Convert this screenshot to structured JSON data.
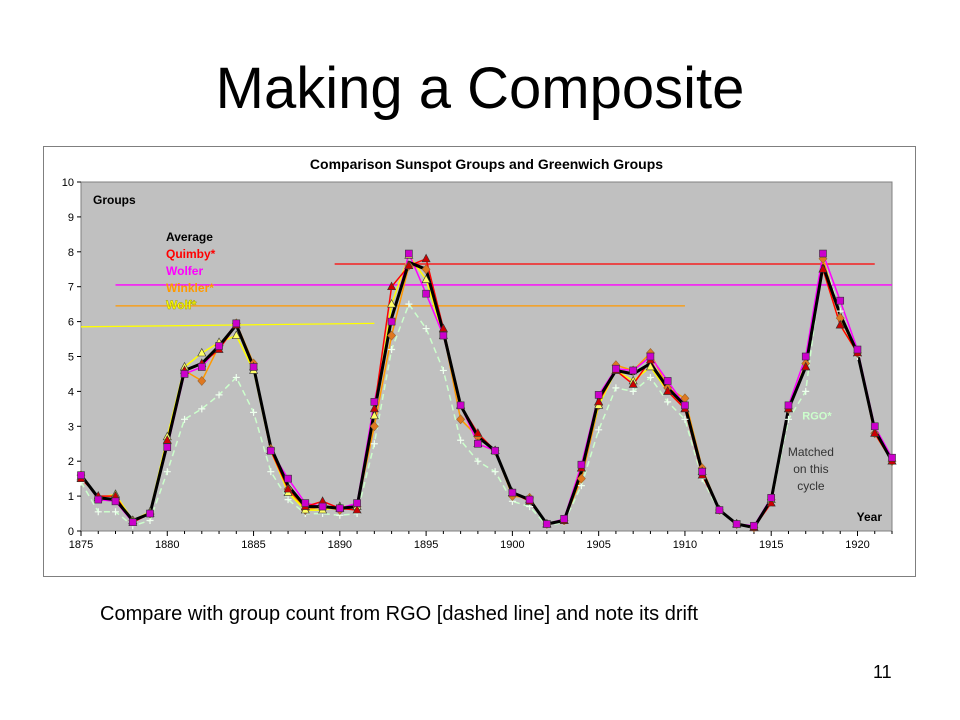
{
  "slide": {
    "title": "Making a Composite",
    "caption": "Compare with group count from RGO [dashed line] and note its drift",
    "number": "11"
  },
  "colors": {
    "plot_bg": "#c0c0c0",
    "average": "#000000",
    "quimby": "#ff0000",
    "wolfer": "#ff00ff",
    "winkler": "#ff9900",
    "wolf": "#ffff00",
    "rgo": "#ccffcc",
    "quimby_marker": "#cc0000",
    "wolfer_marker": "#cc00cc",
    "winkler_marker": "#e07820",
    "wolf_marker": "#ffff66"
  },
  "chart_data": {
    "type": "line",
    "title": "Comparison Sunspot Groups and Greenwich Groups",
    "ylabel": "Groups",
    "xlabel": "Year",
    "xlim": [
      1875,
      1922
    ],
    "ylim": [
      0,
      10
    ],
    "x_ticks": [
      1875,
      1880,
      1885,
      1890,
      1895,
      1900,
      1905,
      1910,
      1915,
      1920
    ],
    "y_ticks": [
      0,
      1,
      2,
      3,
      4,
      5,
      6,
      7,
      8,
      9,
      10
    ],
    "grid": false,
    "legend_position": "top-left",
    "x": [
      1875,
      1876,
      1877,
      1878,
      1879,
      1880,
      1881,
      1882,
      1883,
      1884,
      1885,
      1886,
      1887,
      1888,
      1889,
      1890,
      1891,
      1892,
      1893,
      1894,
      1895,
      1896,
      1897,
      1898,
      1899,
      1900,
      1901,
      1902,
      1903,
      1904,
      1905,
      1906,
      1907,
      1908,
      1909,
      1910,
      1911,
      1912,
      1913,
      1914,
      1915,
      1916,
      1917,
      1918,
      1919,
      1920,
      1921,
      1922
    ],
    "series": [
      {
        "name": "Average",
        "color": "#000000",
        "width": 3,
        "marker": "none",
        "values": [
          1.6,
          0.95,
          0.9,
          0.3,
          0.5,
          2.5,
          4.6,
          4.8,
          5.3,
          5.9,
          4.7,
          2.4,
          1.3,
          0.7,
          0.7,
          0.65,
          0.7,
          3.4,
          6.1,
          7.7,
          7.5,
          5.7,
          3.6,
          2.7,
          2.3,
          1.1,
          0.9,
          0.2,
          0.3,
          1.7,
          3.8,
          4.6,
          4.5,
          4.8,
          4.1,
          3.6,
          1.7,
          0.6,
          0.2,
          0.1,
          0.9,
          3.5,
          4.7,
          7.6,
          6.2,
          5.1,
          2.9,
          2.0
        ]
      },
      {
        "name": "Quimby*",
        "color": "#ff0000",
        "width": 1.5,
        "marker": "triangle",
        "marker_color": "#cc0000",
        "values": [
          1.5,
          1.0,
          1.0,
          0.25,
          0.5,
          2.6,
          4.6,
          4.8,
          5.2,
          5.9,
          4.7,
          2.3,
          1.2,
          0.7,
          0.85,
          0.65,
          0.6,
          3.5,
          7.0,
          7.6,
          7.8,
          5.8,
          3.6,
          2.8,
          2.3,
          1.1,
          0.85,
          0.2,
          0.3,
          1.8,
          3.7,
          4.6,
          4.2,
          4.9,
          4.0,
          3.5,
          1.6,
          0.6,
          0.2,
          0.1,
          0.8,
          3.5,
          4.7,
          7.5,
          5.9,
          5.1,
          2.8,
          2.0
        ]
      },
      {
        "name": "Wolfer",
        "color": "#ff00ff",
        "width": 1.5,
        "marker": "square",
        "marker_color": "#cc00cc",
        "values": [
          1.6,
          0.9,
          0.85,
          0.25,
          0.5,
          2.4,
          4.5,
          4.7,
          5.3,
          5.95,
          4.7,
          2.3,
          1.5,
          0.8,
          0.7,
          0.65,
          0.8,
          3.7,
          6.0,
          7.95,
          6.8,
          5.6,
          3.6,
          2.5,
          2.3,
          1.1,
          0.9,
          0.2,
          0.35,
          1.9,
          3.9,
          4.65,
          4.6,
          5.0,
          4.3,
          3.6,
          1.7,
          0.6,
          0.2,
          0.15,
          0.95,
          3.6,
          5.0,
          7.95,
          6.6,
          5.2,
          3.0,
          2.1
        ]
      },
      {
        "name": "Winkler*",
        "color": "#ff9900",
        "width": 1.5,
        "marker": "diamond",
        "marker_color": "#e07820",
        "values": [
          1.6,
          0.95,
          0.9,
          0.3,
          0.5,
          2.5,
          4.6,
          4.3,
          5.3,
          5.95,
          4.8,
          2.35,
          1.2,
          0.6,
          0.7,
          0.6,
          0.7,
          3.0,
          5.6,
          7.6,
          7.5,
          5.7,
          3.2,
          2.7,
          2.3,
          1.0,
          0.95,
          0.2,
          0.3,
          1.5,
          3.6,
          4.75,
          4.6,
          5.1,
          4.1,
          3.8,
          1.8,
          0.6,
          0.2,
          0.1,
          0.9,
          3.5,
          4.8,
          7.8,
          6.1,
          5.1,
          2.8,
          2.0
        ]
      },
      {
        "name": "Wolf*",
        "color": "#ffff00",
        "width": 1.5,
        "marker": "triangle",
        "marker_color": "#ffff66",
        "values": [
          1.55,
          0.95,
          1.05,
          0.3,
          0.55,
          2.7,
          4.7,
          5.1,
          5.4,
          5.6,
          4.6,
          2.3,
          1.1,
          0.6,
          0.6,
          0.7,
          0.7,
          3.3,
          6.5,
          7.9,
          7.2,
          5.6,
          3.6,
          2.5,
          2.3,
          1.1,
          0.9,
          0.2,
          0.3,
          1.8,
          3.6,
          4.6,
          4.3,
          4.7,
          4.0,
          3.5,
          1.7,
          0.6,
          0.2,
          0.1,
          0.9,
          3.5,
          4.7,
          7.5,
          5.9,
          5.1,
          2.8,
          2.0
        ]
      },
      {
        "name": "RGO*",
        "color": "#ccffcc",
        "width": 1.5,
        "marker": "plus",
        "dashed": true,
        "marker_color": "#eeffee",
        "values": [
          1.4,
          0.55,
          0.55,
          0.15,
          0.3,
          1.7,
          3.2,
          3.5,
          3.9,
          4.4,
          3.4,
          1.7,
          0.9,
          0.5,
          0.5,
          0.45,
          0.5,
          2.5,
          5.2,
          6.5,
          5.8,
          4.6,
          2.6,
          2.0,
          1.7,
          0.85,
          0.7,
          0.15,
          0.25,
          1.3,
          2.9,
          4.1,
          4.0,
          4.4,
          3.7,
          3.2,
          1.5,
          0.55,
          0.2,
          0.1,
          0.8,
          3.2,
          4.0,
          7.8,
          6.3,
          5.0,
          2.9,
          2.0
        ]
      }
    ],
    "reference_lines": [
      {
        "name": "quimby-level",
        "color": "#ff0000",
        "value": 7.65,
        "x_start": 1889.7,
        "x_end": 1921.0
      },
      {
        "name": "wolfer-level",
        "color": "#ff00ff",
        "value": 7.05,
        "x_start": 1877.0,
        "x_end": 1922.0
      },
      {
        "name": "winkler-level",
        "color": "#ff9900",
        "value": 6.45,
        "x_start": 1877.0,
        "x_end": 1910.0
      },
      {
        "name": "wolf-level",
        "color": "#ffff00",
        "value_start": 5.85,
        "value_end": 5.95,
        "x_start": 1875.0,
        "x_end": 1892.0
      }
    ],
    "annotations": {
      "rgo_label": "RGO*",
      "matched_text": "Matched on this cycle",
      "matched_lines": [
        "Matched",
        "on this",
        "cycle"
      ]
    }
  }
}
